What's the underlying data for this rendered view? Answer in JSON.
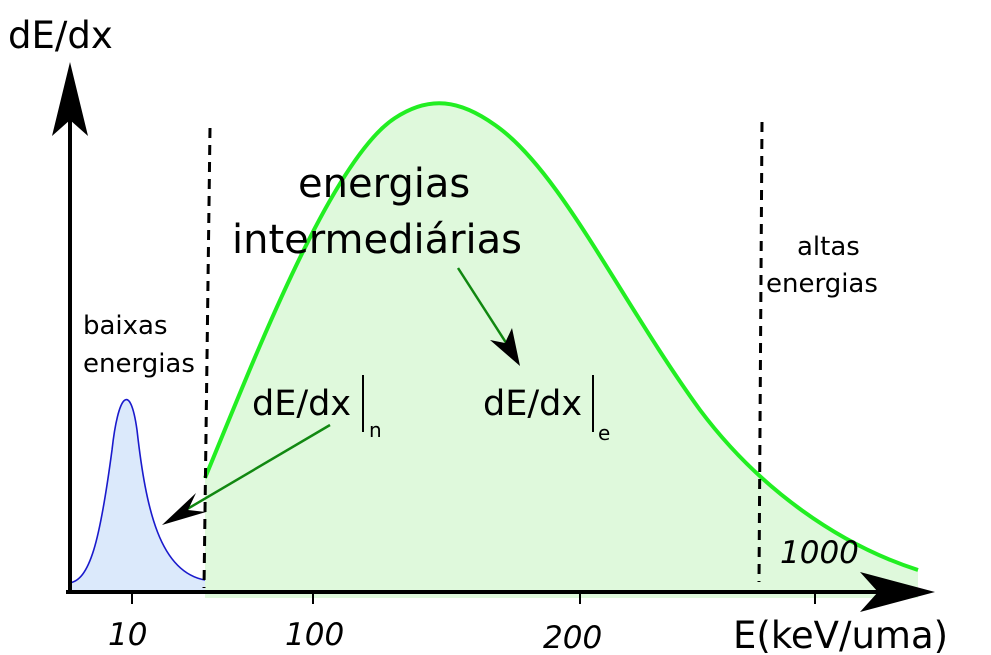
{
  "axes": {
    "y_label": "dE/dx",
    "x_label": "E(keV/uma)",
    "x_ticks": [
      "10",
      "100",
      "200",
      "1000"
    ]
  },
  "regions": {
    "low": [
      "baixas",
      "energias"
    ],
    "intermediate": [
      "energias",
      "intermediárias"
    ],
    "high": [
      "altas",
      "energias"
    ]
  },
  "curves": {
    "nuclear": {
      "label": "dE/dx",
      "subscript": "n",
      "color": "#1a1acc",
      "fill": "#dbe9fb"
    },
    "electronic": {
      "label": "dE/dx",
      "subscript": "e",
      "color": "#22ee22",
      "fill": "#dff9dc"
    }
  },
  "colors": {
    "arrow_green": "#118811",
    "axis": "#000000"
  }
}
